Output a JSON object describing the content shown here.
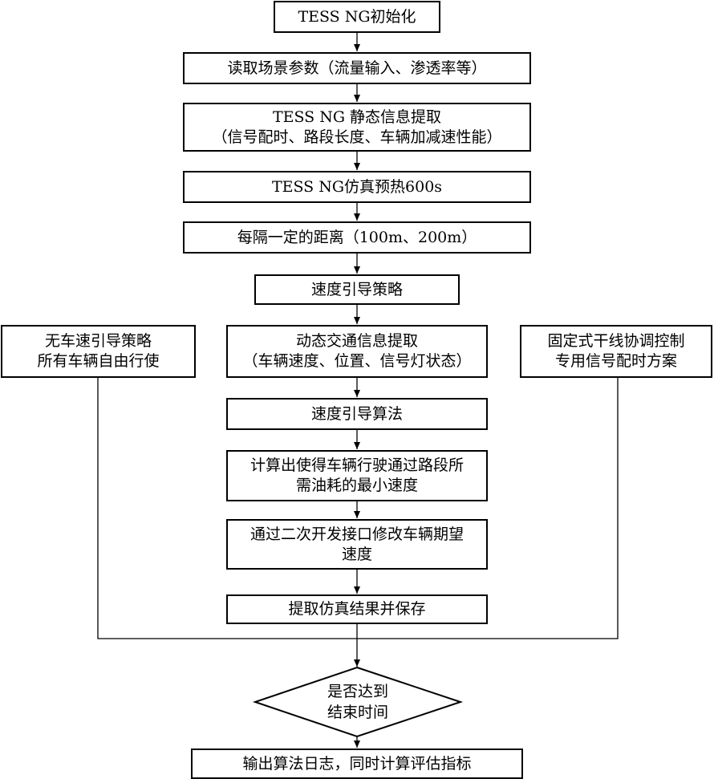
{
  "flowchart": {
    "init": "TESS NG初始化",
    "read_params": "读取场景参数（流量输入、渗透率等）",
    "static_extract": {
      "line1": "TESS NG 静态信息提取",
      "line2": "（信号配时、路段长度、车辆加减速性能）"
    },
    "warmup": "TESS NG仿真预热600s",
    "interval": "每隔一定的距离（100m、200m）",
    "speed_guidance_strategy": "速度引导策略",
    "no_guidance": {
      "line1": "无车速引导策略",
      "line2": "所有车辆自由行使"
    },
    "dynamic_extract": {
      "line1": "动态交通信息提取",
      "line2": "（车辆速度、位置、信号灯状态）"
    },
    "fixed_signal": {
      "line1": "固定式干线协调控制",
      "line2": "专用信号配时方案"
    },
    "speed_algorithm": "速度引导算法",
    "compute_min_fuel": {
      "line1": "计算出使得车辆行驶通过路段所",
      "line2": "需油耗的最小速度"
    },
    "modify_speed": {
      "line1": "通过二次开发接口修改车辆期望",
      "line2": "速度"
    },
    "save_results": "提取仿真结果并保存",
    "decision": {
      "line1": "是否达到",
      "line2": "结束时间"
    },
    "output": "输出算法日志，同时计算评估指标"
  }
}
